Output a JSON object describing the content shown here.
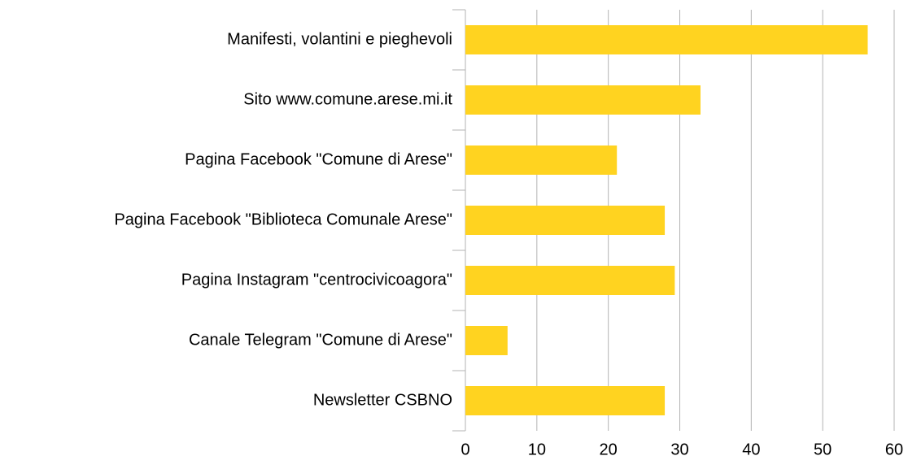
{
  "chart_data": {
    "type": "barh",
    "categories": [
      "Manifesti, volantini e pieghevoli",
      "Sito www.comune.arese.mi.it",
      "Pagina Facebook \"Comune di Arese\"",
      "Pagina Facebook \"Biblioteca Comunale Arese\"",
      "Pagina Instagram \"centrocivicoagora\"",
      "Canale Telegram \"Comune di Arese\"",
      "Newsletter CSBNO"
    ],
    "values": [
      56.3,
      32.9,
      21.2,
      27.9,
      29.3,
      5.9,
      27.9
    ],
    "color": "#ffd320",
    "xlim": [
      0,
      60
    ],
    "xticks": [
      0,
      10,
      20,
      30,
      40,
      50,
      60
    ],
    "grid": true
  }
}
